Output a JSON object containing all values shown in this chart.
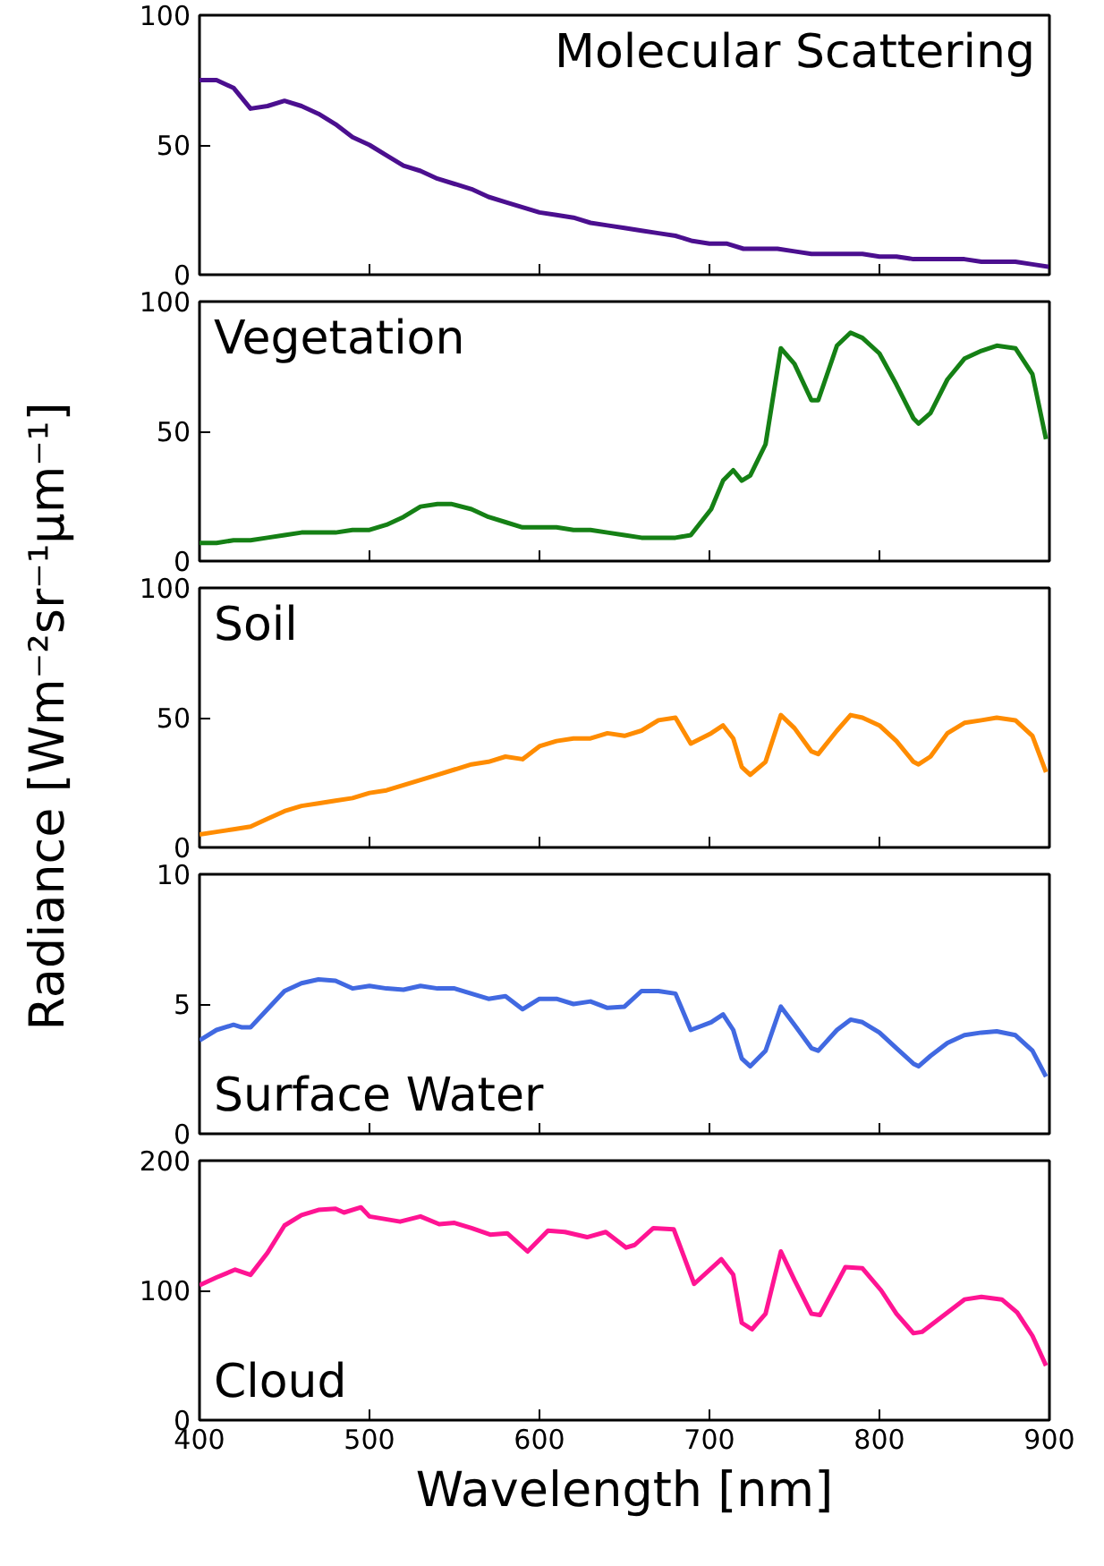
{
  "chart_data": [
    {
      "type": "line",
      "annotations": [
        "Molecular Scattering"
      ],
      "color": "#4b0f8f",
      "x": [
        400,
        410,
        420,
        430,
        440,
        450,
        460,
        470,
        480,
        490,
        500,
        510,
        520,
        530,
        540,
        550,
        560,
        570,
        580,
        590,
        600,
        610,
        620,
        630,
        640,
        650,
        660,
        670,
        680,
        690,
        700,
        710,
        720,
        730,
        740,
        750,
        760,
        770,
        780,
        790,
        800,
        810,
        820,
        830,
        840,
        850,
        860,
        870,
        880,
        890,
        900
      ],
      "values": [
        75,
        75,
        72,
        64,
        65,
        67,
        65,
        62,
        58,
        53,
        50,
        46,
        42,
        40,
        37,
        35,
        33,
        30,
        28,
        26,
        24,
        23,
        22,
        20,
        19,
        18,
        17,
        16,
        15,
        13,
        12,
        12,
        10,
        10,
        10,
        9,
        8,
        8,
        8,
        8,
        7,
        7,
        6,
        6,
        6,
        6,
        5,
        5,
        5,
        4,
        3
      ],
      "xlim": [
        400,
        900
      ],
      "xticks": [
        400,
        500,
        600,
        700,
        800,
        900
      ],
      "ylim": [
        0,
        100
      ],
      "yticks": [
        0,
        50,
        100
      ],
      "tick_labels": "y",
      "grid": false
    },
    {
      "type": "line",
      "annotations": [
        "Vegetation"
      ],
      "color": "#158015",
      "x": [
        400,
        410,
        420,
        430,
        440,
        450,
        460,
        470,
        480,
        490,
        500,
        510,
        520,
        530,
        540,
        548,
        560,
        570,
        580,
        590,
        600,
        610,
        620,
        630,
        640,
        650,
        660,
        670,
        680,
        689,
        701,
        708,
        714,
        719,
        724,
        733,
        742,
        750,
        760,
        764,
        775,
        783,
        790,
        800,
        810,
        820,
        823,
        830,
        840,
        850,
        860,
        869,
        880,
        890,
        898
      ],
      "values": [
        7,
        7,
        8,
        8,
        9,
        10,
        11,
        11,
        11,
        12,
        12,
        14,
        17,
        21,
        22,
        22,
        20,
        17,
        15,
        13,
        13,
        13,
        12,
        12,
        11,
        10,
        9,
        9,
        9,
        10,
        20,
        31,
        35,
        31,
        33,
        45,
        82,
        76,
        62,
        62,
        83,
        88,
        86,
        80,
        68,
        55,
        53,
        57,
        70,
        78,
        81,
        83,
        82,
        72,
        47
      ],
      "xlim": [
        400,
        900
      ],
      "xticks": [
        400,
        500,
        600,
        700,
        800,
        900
      ],
      "ylim": [
        0,
        100
      ],
      "yticks": [
        0,
        50,
        100
      ],
      "tick_labels": "y",
      "grid": false
    },
    {
      "type": "line",
      "annotations": [
        "Soil"
      ],
      "color": "#ff8c00",
      "ylabel": "Radiance [Wm⁻²sr⁻¹μm⁻¹]",
      "x": [
        400,
        410,
        420,
        430,
        440,
        450,
        460,
        470,
        480,
        490,
        500,
        510,
        520,
        530,
        540,
        550,
        560,
        570,
        580,
        590,
        600,
        610,
        620,
        630,
        640,
        650,
        660,
        670,
        680,
        689,
        701,
        708,
        714,
        719,
        724,
        733,
        742,
        750,
        760,
        764,
        775,
        783,
        790,
        800,
        810,
        820,
        823,
        830,
        840,
        850,
        860,
        869,
        880,
        890,
        898
      ],
      "values": [
        5,
        6,
        7,
        8,
        11,
        14,
        16,
        17,
        18,
        19,
        21,
        22,
        24,
        26,
        28,
        30,
        32,
        33,
        35,
        34,
        39,
        41,
        42,
        42,
        44,
        43,
        45,
        49,
        50,
        40,
        44,
        47,
        42,
        31,
        28,
        33,
        51,
        46,
        37,
        36,
        45,
        51,
        50,
        47,
        41,
        33,
        32,
        35,
        44,
        48,
        49,
        50,
        49,
        43,
        29
      ],
      "xlim": [
        400,
        900
      ],
      "xticks": [
        400,
        500,
        600,
        700,
        800,
        900
      ],
      "ylim": [
        0,
        100
      ],
      "yticks": [
        0,
        50,
        100
      ],
      "tick_labels": "y",
      "grid": false
    },
    {
      "type": "line",
      "annotations": [
        "Surface Water"
      ],
      "color": "#4169e1",
      "x": [
        400,
        410,
        420,
        425,
        430,
        440,
        450,
        460,
        470,
        480,
        490,
        500,
        510,
        520,
        530,
        540,
        550,
        560,
        570,
        580,
        590,
        600,
        610,
        620,
        630,
        640,
        650,
        660,
        670,
        680,
        689,
        701,
        708,
        714,
        719,
        724,
        733,
        742,
        750,
        760,
        764,
        775,
        783,
        790,
        800,
        810,
        820,
        823,
        830,
        840,
        850,
        860,
        869,
        880,
        890,
        898
      ],
      "values": [
        3.6,
        4.0,
        4.2,
        4.1,
        4.1,
        4.8,
        5.5,
        5.8,
        5.95,
        5.9,
        5.6,
        5.7,
        5.6,
        5.55,
        5.7,
        5.6,
        5.6,
        5.4,
        5.2,
        5.3,
        4.8,
        5.2,
        5.2,
        5.0,
        5.1,
        4.85,
        4.9,
        5.5,
        5.5,
        5.4,
        4.0,
        4.3,
        4.6,
        4.0,
        2.9,
        2.6,
        3.2,
        4.9,
        4.2,
        3.3,
        3.2,
        4.0,
        4.4,
        4.3,
        3.9,
        3.3,
        2.7,
        2.6,
        3.0,
        3.5,
        3.8,
        3.9,
        3.95,
        3.8,
        3.2,
        2.2
      ],
      "xlim": [
        400,
        900
      ],
      "xticks": [
        400,
        500,
        600,
        700,
        800,
        900
      ],
      "ylim": [
        0,
        10
      ],
      "yticks": [
        0,
        5,
        10
      ],
      "tick_labels": "y",
      "grid": false
    },
    {
      "type": "line",
      "annotations": [
        "Cloud"
      ],
      "color": "#ff1493",
      "xlabel": "Wavelength [nm]",
      "x": [
        400,
        410,
        421,
        430,
        440,
        450,
        460,
        470,
        480,
        485,
        495,
        500,
        518,
        530,
        541,
        550,
        560,
        571,
        581,
        593,
        605,
        615,
        628,
        639,
        651,
        656,
        667,
        679,
        691,
        707,
        714,
        719,
        725,
        733,
        742,
        750,
        760,
        765,
        780,
        790,
        801,
        810,
        820,
        825,
        835,
        850,
        860,
        872,
        881,
        890,
        898
      ],
      "values": [
        104,
        110,
        116,
        112,
        129,
        150,
        158,
        162,
        163,
        160,
        164,
        157,
        153,
        157,
        151,
        152,
        148,
        143,
        144,
        130,
        146,
        145,
        141,
        145,
        133,
        135,
        148,
        147,
        105,
        124,
        112,
        75,
        70,
        82,
        130,
        108,
        82,
        81,
        118,
        117,
        100,
        82,
        67,
        68,
        78,
        93,
        95,
        93,
        83,
        65,
        42
      ],
      "xlim": [
        400,
        900
      ],
      "xticks": [
        400,
        500,
        600,
        700,
        800,
        900
      ],
      "ylim": [
        0,
        200
      ],
      "yticks": [
        0,
        100,
        200
      ],
      "grid": false
    }
  ]
}
